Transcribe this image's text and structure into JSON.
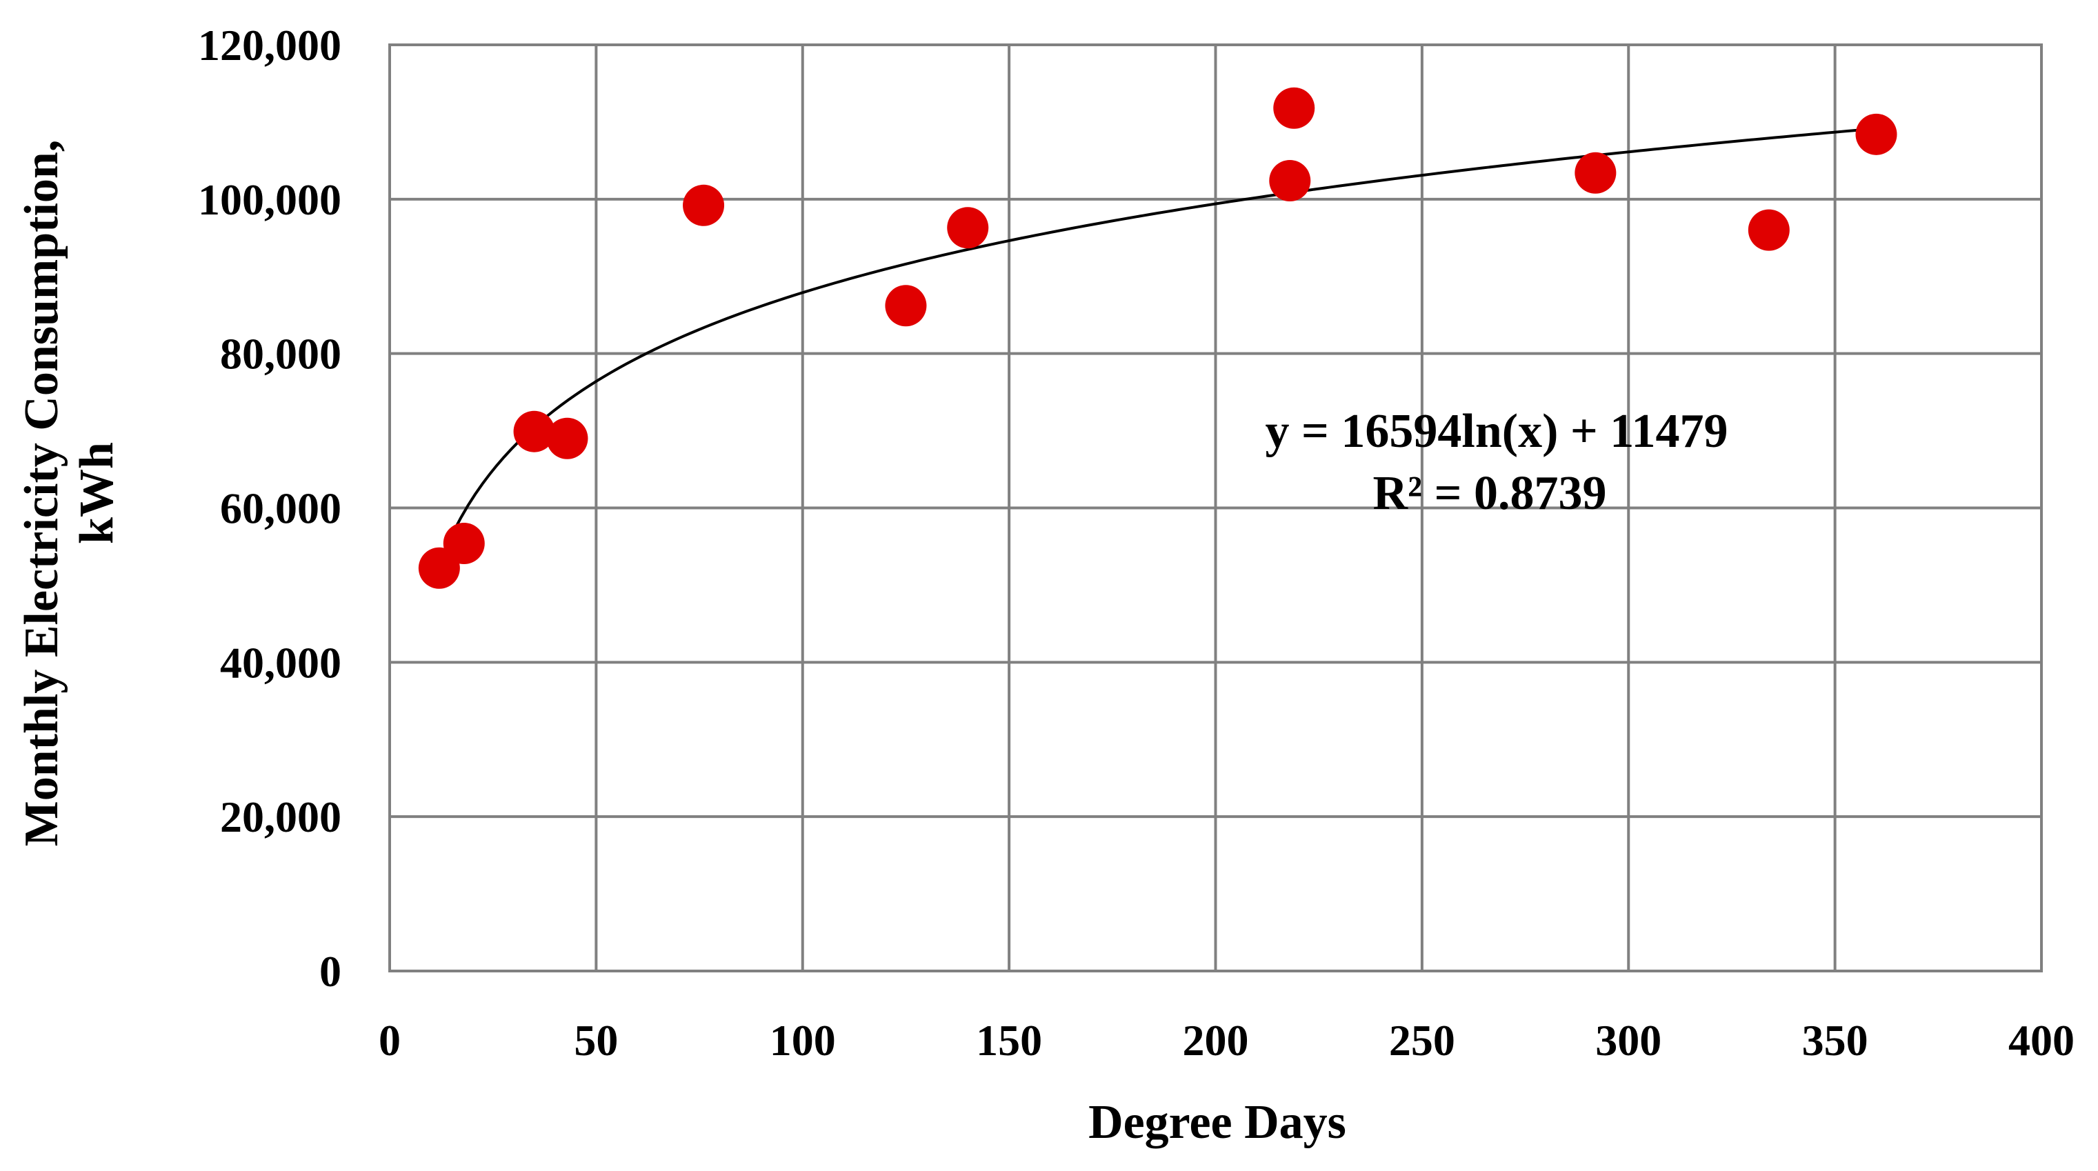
{
  "chart_data": {
    "type": "scatter",
    "title": "",
    "xlabel": "Degree Days",
    "ylabel_lines": [
      "Monthly Electricity Consumption,",
      "kWh"
    ],
    "xlim": [
      0,
      400
    ],
    "ylim": [
      0,
      120000
    ],
    "x_ticks": [
      0,
      50,
      100,
      150,
      200,
      250,
      300,
      350,
      400
    ],
    "y_ticks": [
      0,
      20000,
      40000,
      60000,
      80000,
      100000,
      120000
    ],
    "x_tick_labels": [
      "0",
      "50",
      "100",
      "150",
      "200",
      "250",
      "300",
      "350",
      "400"
    ],
    "y_tick_labels": [
      "0",
      "20,000",
      "40,000",
      "60,000",
      "80,000",
      "100,000",
      "120,000"
    ],
    "grid": true,
    "series": [
      {
        "name": "Monthly Electricity Consumption",
        "color": "#e00000",
        "points": [
          {
            "x": 12,
            "y": 52200
          },
          {
            "x": 18,
            "y": 55400
          },
          {
            "x": 35,
            "y": 69900
          },
          {
            "x": 43,
            "y": 69000
          },
          {
            "x": 76,
            "y": 99200
          },
          {
            "x": 125,
            "y": 86200
          },
          {
            "x": 140,
            "y": 96300
          },
          {
            "x": 218,
            "y": 102400
          },
          {
            "x": 219,
            "y": 111800
          },
          {
            "x": 292,
            "y": 103400
          },
          {
            "x": 334,
            "y": 96000
          },
          {
            "x": 360,
            "y": 108400
          }
        ]
      }
    ],
    "trendline": {
      "type": "logarithmic",
      "a": 16594,
      "b": 11479,
      "x_from": 12,
      "x_to": 360,
      "color": "#000000",
      "equation_label": "y = 16594ln(x) + 11479",
      "r2_label": "R² = 0.8739"
    }
  }
}
